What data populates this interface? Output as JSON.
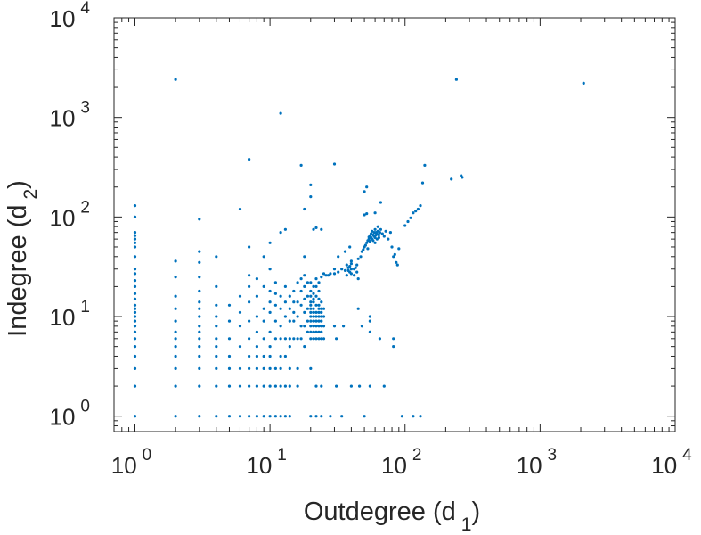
{
  "chart_data": {
    "type": "scatter",
    "title": "",
    "xlabel": {
      "text": "Outdegree (d",
      "subscript": "1",
      "close": ")"
    },
    "ylabel": {
      "text": "Indegree (d",
      "subscript": "2",
      "close": ")"
    },
    "xscale": "log",
    "yscale": "log",
    "xlim": [
      0.7,
      10000
    ],
    "ylim": [
      0.7,
      10000
    ],
    "grid": false,
    "legend": "none",
    "marker_color": "#0072BD",
    "xticks": [
      {
        "value": 1,
        "base": "10",
        "exp": "0"
      },
      {
        "value": 10,
        "base": "10",
        "exp": "1"
      },
      {
        "value": 100,
        "base": "10",
        "exp": "2"
      },
      {
        "value": 1000,
        "base": "10",
        "exp": "3"
      },
      {
        "value": 10000,
        "base": "10",
        "exp": "4"
      }
    ],
    "yticks": [
      {
        "value": 1,
        "base": "10",
        "exp": "0"
      },
      {
        "value": 10,
        "base": "10",
        "exp": "1"
      },
      {
        "value": 100,
        "base": "10",
        "exp": "2"
      },
      {
        "value": 1000,
        "base": "10",
        "exp": "3"
      },
      {
        "value": 10000,
        "base": "10",
        "exp": "4"
      }
    ],
    "points": [
      [
        1,
        1
      ],
      [
        1,
        2
      ],
      [
        1,
        3
      ],
      [
        1,
        4
      ],
      [
        1,
        5
      ],
      [
        1,
        6
      ],
      [
        1,
        7
      ],
      [
        1,
        8
      ],
      [
        1,
        9
      ],
      [
        1,
        10
      ],
      [
        1,
        11
      ],
      [
        1,
        12
      ],
      [
        1,
        13
      ],
      [
        1,
        15
      ],
      [
        1,
        17
      ],
      [
        1,
        20
      ],
      [
        1,
        23
      ],
      [
        1,
        27
      ],
      [
        1,
        30
      ],
      [
        1,
        40
      ],
      [
        1,
        50
      ],
      [
        1,
        55
      ],
      [
        1,
        60
      ],
      [
        1,
        65
      ],
      [
        1,
        70
      ],
      [
        1,
        100
      ],
      [
        1,
        130
      ],
      [
        2,
        1
      ],
      [
        2,
        2
      ],
      [
        2,
        3
      ],
      [
        2,
        4
      ],
      [
        2,
        5
      ],
      [
        2,
        6
      ],
      [
        2,
        7
      ],
      [
        2,
        9
      ],
      [
        2,
        12
      ],
      [
        2,
        16
      ],
      [
        2,
        25
      ],
      [
        2,
        36
      ],
      [
        2,
        2400
      ],
      [
        3,
        1
      ],
      [
        3,
        2
      ],
      [
        3,
        3
      ],
      [
        3,
        4
      ],
      [
        3,
        5
      ],
      [
        3,
        6
      ],
      [
        3,
        7
      ],
      [
        3,
        8
      ],
      [
        3,
        10
      ],
      [
        3,
        12
      ],
      [
        3,
        14
      ],
      [
        3,
        18
      ],
      [
        3,
        25
      ],
      [
        3,
        35
      ],
      [
        3,
        45
      ],
      [
        3,
        95
      ],
      [
        4,
        1
      ],
      [
        4,
        2
      ],
      [
        4,
        3
      ],
      [
        4,
        4
      ],
      [
        4,
        5
      ],
      [
        4,
        6
      ],
      [
        4,
        8
      ],
      [
        4,
        10
      ],
      [
        4,
        13
      ],
      [
        4,
        20
      ],
      [
        4,
        40
      ],
      [
        5,
        1
      ],
      [
        5,
        2
      ],
      [
        5,
        3
      ],
      [
        5,
        4
      ],
      [
        5,
        6
      ],
      [
        5,
        9
      ],
      [
        5,
        13
      ],
      [
        6,
        1
      ],
      [
        6,
        2
      ],
      [
        6,
        3
      ],
      [
        6,
        5
      ],
      [
        6,
        8
      ],
      [
        6,
        11
      ],
      [
        6,
        16
      ],
      [
        6,
        120
      ],
      [
        7,
        1
      ],
      [
        7,
        2
      ],
      [
        7,
        3
      ],
      [
        7,
        4
      ],
      [
        7,
        6
      ],
      [
        7,
        9
      ],
      [
        7,
        14
      ],
      [
        7,
        20
      ],
      [
        7,
        26
      ],
      [
        7,
        50
      ],
      [
        7,
        380
      ],
      [
        8,
        1
      ],
      [
        8,
        2
      ],
      [
        8,
        3
      ],
      [
        8,
        4
      ],
      [
        8,
        5
      ],
      [
        8,
        7
      ],
      [
        8,
        10
      ],
      [
        8,
        16
      ],
      [
        8,
        24
      ],
      [
        9,
        1
      ],
      [
        9,
        2
      ],
      [
        9,
        3
      ],
      [
        9,
        4
      ],
      [
        9,
        6
      ],
      [
        9,
        9
      ],
      [
        9,
        12
      ],
      [
        9,
        20
      ],
      [
        9,
        40
      ],
      [
        10,
        1
      ],
      [
        10,
        2
      ],
      [
        10,
        3
      ],
      [
        10,
        4
      ],
      [
        10,
        5
      ],
      [
        10,
        7
      ],
      [
        10,
        11
      ],
      [
        10,
        14
      ],
      [
        10,
        18
      ],
      [
        10,
        30
      ],
      [
        10,
        55
      ],
      [
        11,
        1
      ],
      [
        11,
        2
      ],
      [
        11,
        3
      ],
      [
        11,
        6
      ],
      [
        11,
        9
      ],
      [
        11,
        13
      ],
      [
        11,
        17
      ],
      [
        11,
        22
      ],
      [
        12,
        1
      ],
      [
        12,
        2
      ],
      [
        12,
        3
      ],
      [
        12,
        4
      ],
      [
        12,
        6
      ],
      [
        12,
        8
      ],
      [
        12,
        12
      ],
      [
        12,
        16
      ],
      [
        12,
        70
      ],
      [
        12,
        1100
      ],
      [
        13,
        1
      ],
      [
        13,
        2
      ],
      [
        13,
        4
      ],
      [
        13,
        6
      ],
      [
        13,
        10
      ],
      [
        13,
        14
      ],
      [
        13,
        20
      ],
      [
        13,
        75
      ],
      [
        14,
        1
      ],
      [
        14,
        2
      ],
      [
        14,
        3
      ],
      [
        14,
        5
      ],
      [
        14,
        6
      ],
      [
        14,
        9
      ],
      [
        14,
        12
      ],
      [
        14,
        16
      ],
      [
        15,
        6
      ],
      [
        15,
        9
      ],
      [
        15,
        11
      ],
      [
        15,
        14
      ],
      [
        15,
        18
      ],
      [
        16,
        2
      ],
      [
        16,
        3
      ],
      [
        16,
        6
      ],
      [
        16,
        10
      ],
      [
        16,
        14
      ],
      [
        16,
        22
      ],
      [
        17,
        6
      ],
      [
        17,
        8
      ],
      [
        17,
        13
      ],
      [
        17,
        18
      ],
      [
        17,
        24
      ],
      [
        17,
        330
      ],
      [
        18,
        5
      ],
      [
        18,
        8
      ],
      [
        18,
        11
      ],
      [
        18,
        15
      ],
      [
        18,
        20
      ],
      [
        18,
        26
      ],
      [
        18,
        40
      ],
      [
        18,
        120
      ],
      [
        19,
        7
      ],
      [
        19,
        9
      ],
      [
        19,
        12
      ],
      [
        19,
        16
      ],
      [
        19,
        22
      ],
      [
        20,
        1
      ],
      [
        20,
        3
      ],
      [
        20,
        6
      ],
      [
        20,
        7
      ],
      [
        20,
        8
      ],
      [
        20,
        9
      ],
      [
        20,
        10
      ],
      [
        20,
        11
      ],
      [
        20,
        12
      ],
      [
        20,
        13
      ],
      [
        20,
        14
      ],
      [
        20,
        16
      ],
      [
        20,
        18
      ],
      [
        20,
        22
      ],
      [
        20,
        160
      ],
      [
        20,
        210
      ],
      [
        21,
        6
      ],
      [
        21,
        7
      ],
      [
        21,
        8
      ],
      [
        21,
        9
      ],
      [
        21,
        10
      ],
      [
        21,
        11
      ],
      [
        21,
        12
      ],
      [
        21,
        14
      ],
      [
        21,
        15
      ],
      [
        21,
        17
      ],
      [
        21,
        20
      ],
      [
        21,
        75
      ],
      [
        22,
        1
      ],
      [
        22,
        2
      ],
      [
        22,
        6
      ],
      [
        22,
        7
      ],
      [
        22,
        8
      ],
      [
        22,
        9
      ],
      [
        22,
        10
      ],
      [
        22,
        11
      ],
      [
        22,
        13
      ],
      [
        22,
        16
      ],
      [
        22,
        20
      ],
      [
        22,
        24
      ],
      [
        22,
        78
      ],
      [
        23,
        6
      ],
      [
        23,
        7
      ],
      [
        23,
        8
      ],
      [
        23,
        9
      ],
      [
        23,
        10
      ],
      [
        23,
        11
      ],
      [
        23,
        12
      ],
      [
        23,
        13
      ],
      [
        23,
        15
      ],
      [
        23,
        18
      ],
      [
        23,
        22
      ],
      [
        24,
        1
      ],
      [
        24,
        2
      ],
      [
        24,
        6
      ],
      [
        24,
        7
      ],
      [
        24,
        8
      ],
      [
        24,
        9
      ],
      [
        24,
        10
      ],
      [
        24,
        11
      ],
      [
        24,
        12
      ],
      [
        24,
        14
      ],
      [
        24,
        25
      ],
      [
        24,
        75
      ],
      [
        25,
        6
      ],
      [
        25,
        8
      ],
      [
        25,
        10
      ],
      [
        25,
        12
      ],
      [
        25,
        27
      ],
      [
        26,
        26
      ],
      [
        27,
        26
      ],
      [
        28,
        27
      ],
      [
        28,
        1
      ],
      [
        30,
        8
      ],
      [
        30,
        27
      ],
      [
        30,
        30
      ],
      [
        30,
        340
      ],
      [
        31,
        2
      ],
      [
        31,
        6
      ],
      [
        32,
        28
      ],
      [
        32,
        40
      ],
      [
        34,
        1
      ],
      [
        34,
        30
      ],
      [
        35,
        8
      ],
      [
        36,
        29
      ],
      [
        36,
        45
      ],
      [
        37,
        26
      ],
      [
        37,
        33
      ],
      [
        38,
        29
      ],
      [
        38,
        31
      ],
      [
        39,
        28
      ],
      [
        39,
        32
      ],
      [
        39,
        50
      ],
      [
        40,
        27
      ],
      [
        40,
        30
      ],
      [
        40,
        34
      ],
      [
        40,
        36
      ],
      [
        40,
        2
      ],
      [
        42,
        30
      ],
      [
        42,
        26
      ],
      [
        43,
        31
      ],
      [
        44,
        33
      ],
      [
        44,
        28
      ],
      [
        45,
        12
      ],
      [
        45,
        38
      ],
      [
        45,
        24
      ],
      [
        46,
        2
      ],
      [
        47,
        40
      ],
      [
        48,
        45
      ],
      [
        48,
        8
      ],
      [
        49,
        47
      ],
      [
        50,
        50
      ],
      [
        50,
        105
      ],
      [
        50,
        180
      ],
      [
        50,
        1
      ],
      [
        51,
        52
      ],
      [
        52,
        55
      ],
      [
        52,
        108
      ],
      [
        52,
        200
      ],
      [
        53,
        58
      ],
      [
        53,
        48
      ],
      [
        54,
        60
      ],
      [
        54,
        63
      ],
      [
        55,
        57
      ],
      [
        55,
        65
      ],
      [
        55,
        7
      ],
      [
        55,
        9
      ],
      [
        55,
        10
      ],
      [
        55,
        2
      ],
      [
        56,
        62
      ],
      [
        56,
        68
      ],
      [
        57,
        60
      ],
      [
        57,
        72
      ],
      [
        58,
        66
      ],
      [
        58,
        58
      ],
      [
        59,
        70
      ],
      [
        59,
        64
      ],
      [
        60,
        62
      ],
      [
        60,
        75
      ],
      [
        60,
        55
      ],
      [
        60,
        110
      ],
      [
        61,
        70
      ],
      [
        61,
        66
      ],
      [
        62,
        68
      ],
      [
        62,
        60
      ],
      [
        63,
        72
      ],
      [
        63,
        80
      ],
      [
        64,
        66
      ],
      [
        64,
        62
      ],
      [
        65,
        70
      ],
      [
        65,
        6
      ],
      [
        66,
        75
      ],
      [
        66,
        140
      ],
      [
        68,
        68
      ],
      [
        70,
        64
      ],
      [
        70,
        2
      ],
      [
        72,
        72
      ],
      [
        75,
        60
      ],
      [
        78,
        70
      ],
      [
        80,
        50
      ],
      [
        82,
        40
      ],
      [
        82,
        6
      ],
      [
        82,
        5
      ],
      [
        84,
        42
      ],
      [
        86,
        35
      ],
      [
        88,
        33
      ],
      [
        90,
        48
      ],
      [
        95,
        1
      ],
      [
        100,
        82
      ],
      [
        105,
        90
      ],
      [
        110,
        98
      ],
      [
        115,
        110
      ],
      [
        120,
        115
      ],
      [
        125,
        120
      ],
      [
        130,
        130
      ],
      [
        135,
        220
      ],
      [
        140,
        330
      ],
      [
        115,
        1
      ],
      [
        130,
        1
      ],
      [
        220,
        240
      ],
      [
        240,
        2400
      ],
      [
        260,
        260
      ],
      [
        265,
        250
      ],
      [
        2100,
        2200
      ]
    ]
  }
}
